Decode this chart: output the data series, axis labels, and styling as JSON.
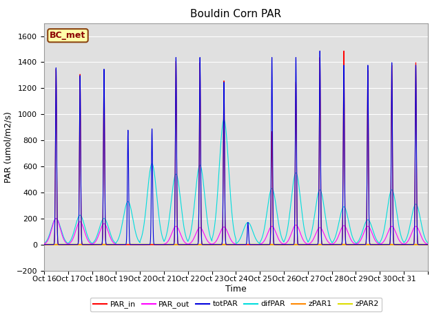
{
  "title": "Bouldin Corn PAR",
  "xlabel": "Time",
  "ylabel": "PAR (umol/m2/s)",
  "ylim": [
    -200,
    1700
  ],
  "yticks": [
    -200,
    0,
    200,
    400,
    600,
    800,
    1000,
    1200,
    1400,
    1600
  ],
  "bg_color": "#e0e0e0",
  "legend_box_label": "BC_met",
  "legend_box_facecolor": "#ffffaa",
  "legend_box_edgecolor": "#8b4513",
  "series": {
    "PAR_in": {
      "color": "#ff0000",
      "lw": 0.8
    },
    "PAR_out": {
      "color": "#ff00ff",
      "lw": 0.8
    },
    "totPAR": {
      "color": "#0000dd",
      "lw": 0.8
    },
    "difPAR": {
      "color": "#00dddd",
      "lw": 0.8
    },
    "zPAR1": {
      "color": "#ff8800",
      "lw": 1.0
    },
    "zPAR2": {
      "color": "#dddd00",
      "lw": 1.5
    }
  },
  "xtick_labels": [
    "Oct 16",
    "Oct 17",
    "Oct 18",
    "Oct 19",
    "Oct 20",
    "Oct 21",
    "Oct 22",
    "Oct 23",
    "Oct 24",
    "Oct 25",
    "Oct 26",
    "Oct 27",
    "Oct 28",
    "Oct 29",
    "Oct 30",
    "Oct 31",
    ""
  ],
  "num_days": 16,
  "pts_per_day": 288,
  "day_peaks": {
    "PAR_in": [
      1350,
      1310,
      1340,
      0,
      0,
      1410,
      1400,
      1260,
      0,
      870,
      1250,
      1440,
      1490,
      1340,
      1380,
      1400
    ],
    "PAR_out": [
      200,
      175,
      160,
      0,
      0,
      140,
      130,
      135,
      0,
      140,
      150,
      130,
      145,
      140,
      140,
      140
    ],
    "totPAR": [
      1360,
      1300,
      1350,
      880,
      890,
      1440,
      1440,
      1250,
      170,
      1440,
      1440,
      1490,
      1380,
      1380,
      1400,
      1380
    ],
    "difPAR": [
      200,
      225,
      200,
      330,
      620,
      540,
      610,
      960,
      170,
      430,
      550,
      420,
      290,
      190,
      420,
      310
    ],
    "zPAR1": [
      0,
      0,
      0,
      0,
      0,
      0,
      0,
      0,
      0,
      0,
      0,
      0,
      0,
      0,
      0,
      0
    ],
    "zPAR2": [
      0,
      0,
      0,
      0,
      0,
      0,
      0,
      0,
      0,
      0,
      0,
      0,
      0,
      0,
      0,
      0
    ]
  }
}
